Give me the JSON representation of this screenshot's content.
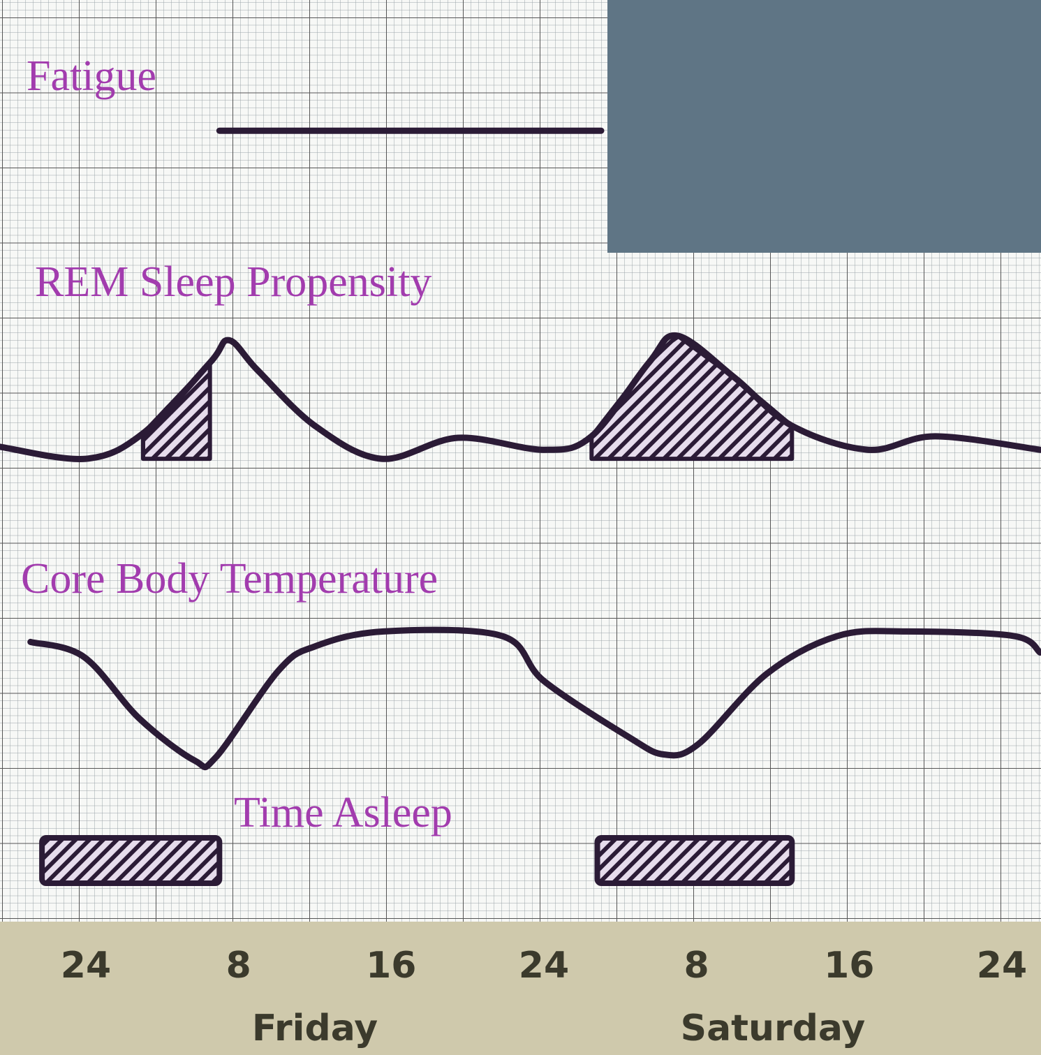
{
  "chart_data": {
    "type": "line",
    "xlim": [
      -4.5,
      50.05
    ],
    "xticks": [
      {
        "value": 0,
        "label": "24"
      },
      {
        "value": 8,
        "label": "8"
      },
      {
        "value": 16,
        "label": "16"
      },
      {
        "value": 24,
        "label": "24"
      },
      {
        "value": 32,
        "label": "8"
      },
      {
        "value": 40,
        "label": "16"
      },
      {
        "value": 48,
        "label": "24"
      }
    ],
    "days": [
      {
        "value": 12,
        "label": "Friday"
      },
      {
        "value": 36,
        "label": "Saturday"
      }
    ],
    "ylim": [
      0,
      10
    ],
    "color": "#2b1b36",
    "label_color": "#a23cae",
    "series": [
      {
        "name": "Fatigue",
        "x": [
          7,
          27
        ],
        "values": [
          2.4,
          2.4
        ]
      },
      {
        "name": "REM Sleep Propensity",
        "x": [
          -4.5,
          0,
          3,
          6.5,
          7.5,
          9,
          12,
          15.5,
          19.5,
          24,
          26.5,
          29.5,
          31,
          34,
          37,
          41,
          44.5,
          50
        ],
        "values": [
          1.4,
          0.6,
          2.3,
          7.0,
          8.5,
          6.5,
          2.8,
          0.6,
          2.0,
          1.2,
          2.1,
          7.0,
          8.8,
          6.0,
          2.8,
          1.2,
          2.1,
          1.2
        ],
        "shaded": [
          [
            3,
            6.5
          ],
          [
            26.5,
            37
          ]
        ]
      },
      {
        "name": "Core Body Temperature",
        "x": [
          -2.9,
          -0.1,
          2.8,
          5.7,
          6.8,
          10.1,
          12,
          15.6,
          21.8,
          24,
          28.4,
          30.3,
          32.1,
          35.7,
          39.4,
          43,
          48.6,
          50
        ],
        "values": [
          8.4,
          7.4,
          3.3,
          0.5,
          0.7,
          6.5,
          8.1,
          9.1,
          8.8,
          5.8,
          2.1,
          0.9,
          1.6,
          6.3,
          8.8,
          9.1,
          8.8,
          7.7
        ]
      },
      {
        "name": "Time Asleep",
        "spans": [
          [
            -2.3,
            7
          ],
          [
            26.8,
            37
          ]
        ]
      }
    ]
  }
}
